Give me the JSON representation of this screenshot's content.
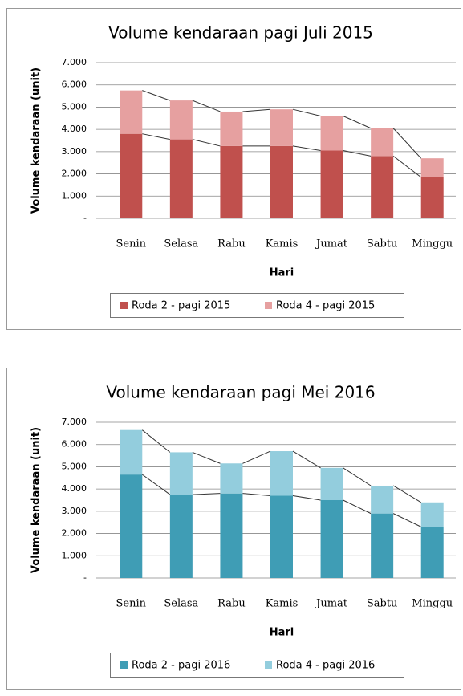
{
  "chart_data": [
    {
      "type": "bar",
      "stacked": true,
      "title": "Volume kendaraan  pagi Juli 2015",
      "xlabel": "Hari",
      "ylabel": "Volume kendaraan (unit)",
      "categories": [
        "Senin",
        "Selasa",
        "Rabu",
        "Kamis",
        "Jumat",
        "Sabtu",
        "Minggu"
      ],
      "series": [
        {
          "name": "Roda 2 - pagi 2015",
          "color": "#c0504d",
          "values": [
            3800,
            3550,
            3250,
            3250,
            3050,
            2800,
            1850
          ]
        },
        {
          "name": "Roda 4 - pagi 2015",
          "color": "#e6a0a0",
          "values": [
            1950,
            1750,
            1550,
            1650,
            1550,
            1250,
            850
          ]
        }
      ],
      "ylim": [
        0,
        7000
      ],
      "yticks": [
        {
          "value": 0,
          "label": "-"
        },
        {
          "value": 1000,
          "label": "1.000"
        },
        {
          "value": 2000,
          "label": "2.000"
        },
        {
          "value": 3000,
          "label": "3.000"
        },
        {
          "value": 4000,
          "label": "4.000"
        },
        {
          "value": 5000,
          "label": "5.000"
        },
        {
          "value": 6000,
          "label": "6.000"
        },
        {
          "value": 7000,
          "label": "7.000"
        }
      ],
      "grid": true,
      "legend": "bottom"
    },
    {
      "type": "bar",
      "stacked": true,
      "title": "Volume kendaraan  pagi Mei 2016",
      "xlabel": "Hari",
      "ylabel": "Volume kendaraan (unit)",
      "categories": [
        "Senin",
        "Selasa",
        "Rabu",
        "Kamis",
        "Jumat",
        "Sabtu",
        "Minggu"
      ],
      "series": [
        {
          "name": "Roda 2 - pagi 2016",
          "color": "#3f9db5",
          "values": [
            4650,
            3750,
            3800,
            3700,
            3500,
            2900,
            2300
          ]
        },
        {
          "name": "Roda 4 - pagi 2016",
          "color": "#93cddd",
          "values": [
            2000,
            1900,
            1350,
            2000,
            1450,
            1250,
            1100
          ]
        }
      ],
      "ylim": [
        0,
        7000
      ],
      "yticks": [
        {
          "value": 0,
          "label": "-"
        },
        {
          "value": 1000,
          "label": "1.000"
        },
        {
          "value": 2000,
          "label": "2.000"
        },
        {
          "value": 3000,
          "label": "3.000"
        },
        {
          "value": 4000,
          "label": "4.000"
        },
        {
          "value": 5000,
          "label": "5.000"
        },
        {
          "value": 6000,
          "label": "6.000"
        },
        {
          "value": 7000,
          "label": "7.000"
        }
      ],
      "grid": true,
      "legend": "bottom"
    }
  ]
}
